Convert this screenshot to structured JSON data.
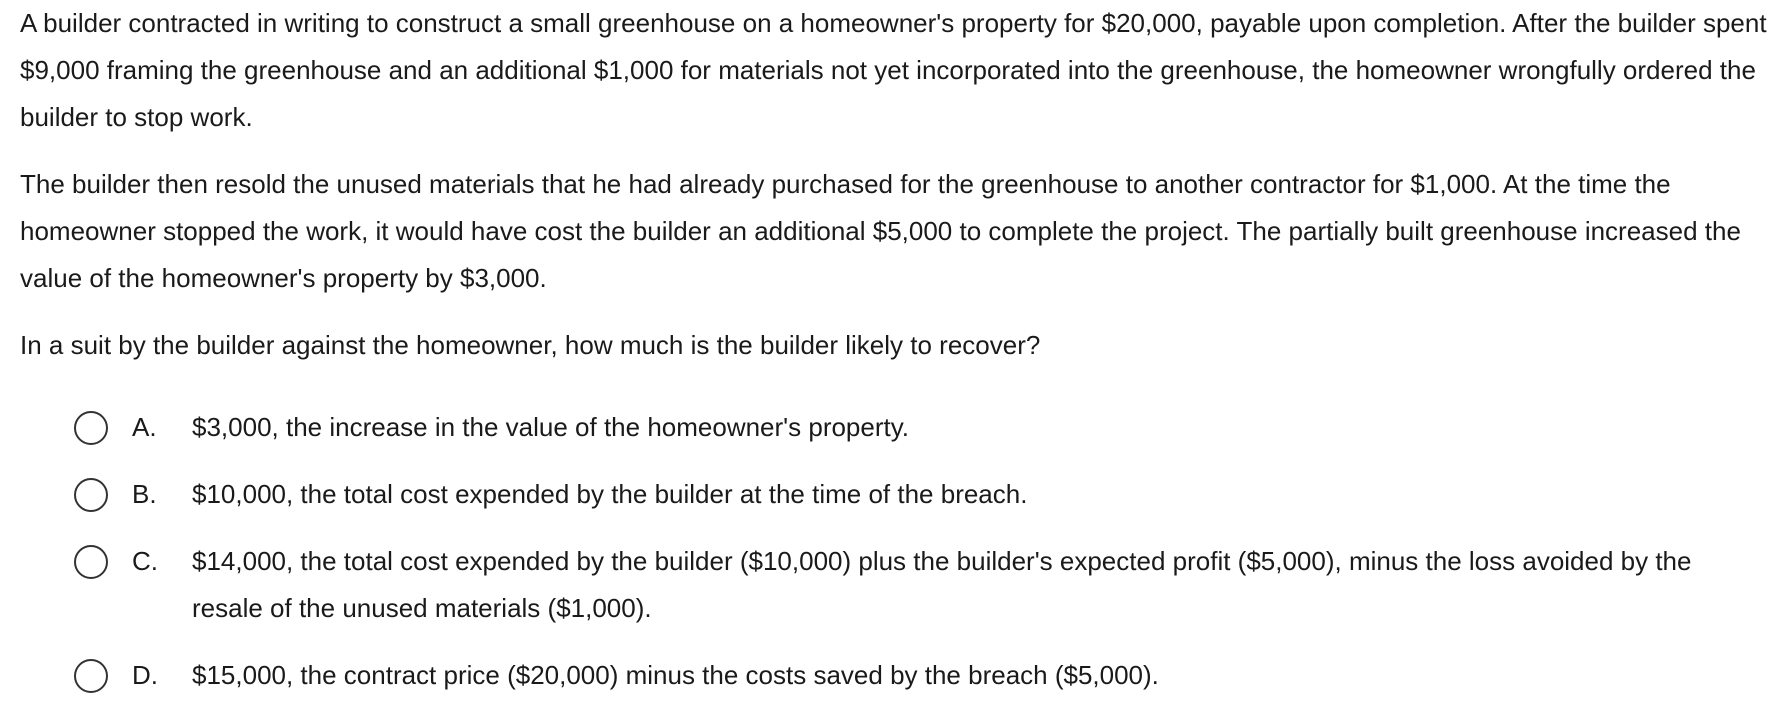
{
  "question": {
    "stem": [
      "A builder contracted in writing to construct a small greenhouse on a homeowner's property for $20,000, payable upon completion.  After the builder spent $9,000 framing the greenhouse and an additional $1,000 for materials not yet incorporated into the greenhouse, the homeowner wrongfully ordered the builder to stop work.",
      "The builder then resold the unused materials that he had already purchased for the greenhouse to another contractor for $1,000.  At the time the homeowner stopped the work, it would have cost the builder an additional $5,000 to complete the project.  The partially built greenhouse increased the value of the homeowner's property by $3,000."
    ],
    "prompt": "In a suit by the builder against the homeowner, how much is the builder likely to recover?",
    "options": [
      {
        "letter": "A.",
        "text": "$3,000, the increase in the value of the homeowner's property."
      },
      {
        "letter": "B.",
        "text": "$10,000, the total cost expended by the builder at the time of the breach."
      },
      {
        "letter": "C.",
        "text": "$14,000, the total cost expended by the builder ($10,000) plus the builder's expected profit ($5,000), minus the loss avoided by the resale of the unused materials ($1,000)."
      },
      {
        "letter": "D.",
        "text": "$15,000, the contract price ($20,000) minus the costs saved by the breach ($5,000)."
      }
    ]
  }
}
